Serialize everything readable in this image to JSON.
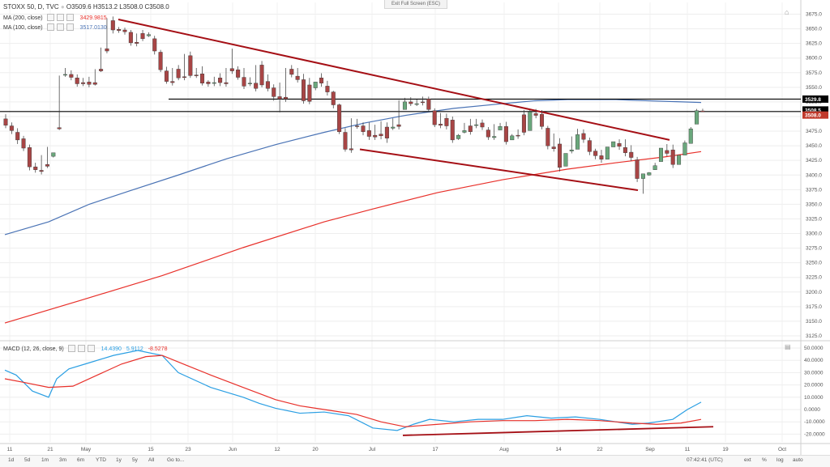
{
  "header": {
    "symbol_line": "STOXX 50, D, TVC",
    "ohlc": "O3509.6  H3513.2  L3508.0  C3508.0",
    "ma200_label": "MA (200, close)",
    "ma200_value": "3429.9815",
    "ma100_label": "MA (100, close)",
    "ma100_value": "3517.0130",
    "exit_fullscreen": "Exit Full Screen (ESC)",
    "macd_label": "MACD (12, 26, close, 9)",
    "macd_values": [
      "14.4390",
      "5.9112",
      "-8.5278"
    ]
  },
  "colors": {
    "bull": "#6aa77c",
    "bear": "#a84545",
    "ma100": "#4a73b5",
    "ma200": "#e8302a",
    "trend": "#a50f15",
    "macd": "#2b9fe3",
    "signal": "#e8302a",
    "level": "#000000"
  },
  "price_axis": {
    "ticks": [
      "3675.0",
      "3650.0",
      "3625.0",
      "3600.0",
      "3575.0",
      "3550.0",
      "3525.0",
      "3500.0",
      "3475.0",
      "3450.0",
      "3425.0",
      "3400.0",
      "3375.0",
      "3350.0",
      "3325.0",
      "3300.0",
      "3275.0",
      "3250.0",
      "3225.0",
      "3200.0",
      "3175.0",
      "3150.0",
      "3125.0"
    ],
    "badges": {
      "upper": "3529.8",
      "mid": "3508.5",
      "last": "3508.0"
    }
  },
  "macd_axis": {
    "ticks": [
      "50.0000",
      "40.0000",
      "30.0000",
      "20.0000",
      "10.0000",
      "0.0000",
      "-10.0000",
      "-20.0000"
    ]
  },
  "time_axis": {
    "labels": [
      "11",
      "21",
      "May",
      "15",
      "23",
      "Jun",
      "12",
      "20",
      "Jul",
      "17",
      "Aug",
      "14",
      "22",
      "Sep",
      "11",
      "19",
      "Oct"
    ]
  },
  "bottom_bar": {
    "timeframes": [
      "1d",
      "5d",
      "1m",
      "3m",
      "6m",
      "YTD",
      "1y",
      "5y",
      "All",
      "Go to..."
    ],
    "clock": "07:42:41 (UTC)",
    "toggles": [
      "ext",
      "%",
      "log",
      "auto"
    ]
  },
  "chart_data": {
    "type": "candlestick",
    "candles": [
      [
        3496,
        3504,
        3485,
        3480
      ],
      [
        3484,
        3490,
        3476,
        3470
      ],
      [
        3473,
        3480,
        3460,
        3453
      ],
      [
        3462,
        3467,
        3446,
        3441
      ],
      [
        3447,
        3452,
        3414,
        3408
      ],
      [
        3414,
        3421,
        3409,
        3404
      ],
      [
        3408,
        3434,
        3406,
        3401
      ],
      [
        3418,
        3448,
        3415,
        3412
      ],
      [
        3432,
        3438,
        3438,
        3430
      ],
      [
        3481,
        3570,
        3479,
        3477
      ],
      [
        3572,
        3583,
        3572,
        3568
      ],
      [
        3572,
        3579,
        3567,
        3562
      ],
      [
        3566,
        3572,
        3556,
        3551
      ],
      [
        3558,
        3566,
        3556,
        3552
      ],
      [
        3559,
        3568,
        3555,
        3550
      ],
      [
        3558,
        3581,
        3555,
        3553
      ],
      [
        3581,
        3618,
        3578,
        3576
      ],
      [
        3616,
        3668,
        3612,
        3608
      ],
      [
        3664,
        3671,
        3648,
        3642
      ],
      [
        3649,
        3653,
        3647,
        3643
      ],
      [
        3648,
        3652,
        3645,
        3640
      ],
      [
        3644,
        3648,
        3626,
        3621
      ],
      [
        3627,
        3642,
        3625,
        3620
      ],
      [
        3642,
        3648,
        3633,
        3629
      ],
      [
        3638,
        3644,
        3640,
        3636
      ],
      [
        3633,
        3638,
        3612,
        3606
      ],
      [
        3610,
        3614,
        3580,
        3576
      ],
      [
        3578,
        3585,
        3560,
        3556
      ],
      [
        3560,
        3583,
        3558,
        3553
      ],
      [
        3581,
        3588,
        3566,
        3562
      ],
      [
        3568,
        3607,
        3567,
        3562
      ],
      [
        3604,
        3611,
        3570,
        3566
      ],
      [
        3571,
        3583,
        3570,
        3566
      ],
      [
        3573,
        3586,
        3557,
        3553
      ],
      [
        3559,
        3562,
        3556,
        3551
      ],
      [
        3557,
        3568,
        3558,
        3552
      ],
      [
        3566,
        3574,
        3558,
        3552
      ],
      [
        3558,
        3583,
        3556,
        3551
      ],
      [
        3582,
        3616,
        3578,
        3573
      ],
      [
        3580,
        3586,
        3567,
        3563
      ],
      [
        3567,
        3583,
        3552,
        3547
      ],
      [
        3557,
        3567,
        3557,
        3552
      ],
      [
        3557,
        3588,
        3548,
        3543
      ],
      [
        3588,
        3595,
        3554,
        3550
      ],
      [
        3560,
        3572,
        3548,
        3543
      ],
      [
        3549,
        3555,
        3534,
        3527
      ],
      [
        3534,
        3558,
        3530,
        3507
      ],
      [
        3533,
        3583,
        3530,
        3525
      ],
      [
        3581,
        3588,
        3572,
        3567
      ],
      [
        3569,
        3583,
        3563,
        3558
      ],
      [
        3563,
        3573,
        3527,
        3522
      ],
      [
        3554,
        3566,
        3526,
        3521
      ],
      [
        3549,
        3556,
        3559,
        3545
      ],
      [
        3566,
        3574,
        3557,
        3551
      ],
      [
        3552,
        3561,
        3542,
        3536
      ],
      [
        3542,
        3544,
        3520,
        3514
      ],
      [
        3520,
        3522,
        3474,
        3470
      ],
      [
        3473,
        3480,
        3444,
        3440
      ],
      [
        3445,
        3497,
        3443,
        3438
      ],
      [
        3484,
        3496,
        3483,
        3479
      ],
      [
        3484,
        3490,
        3474,
        3468
      ],
      [
        3476,
        3490,
        3466,
        3460
      ],
      [
        3468,
        3486,
        3465,
        3460
      ],
      [
        3470,
        3492,
        3467,
        3461
      ],
      [
        3482,
        3490,
        3463,
        3455
      ],
      [
        3480,
        3497,
        3482,
        3477
      ],
      [
        3486,
        3528,
        3483,
        3478
      ],
      [
        3512,
        3532,
        3525,
        3520
      ],
      [
        3525,
        3533,
        3522,
        3518
      ],
      [
        3522,
        3529,
        3522,
        3518
      ],
      [
        3525,
        3534,
        3524,
        3519
      ],
      [
        3530,
        3534,
        3512,
        3508
      ],
      [
        3510,
        3514,
        3486,
        3482
      ],
      [
        3487,
        3506,
        3485,
        3480
      ],
      [
        3497,
        3505,
        3484,
        3478
      ],
      [
        3494,
        3500,
        3460,
        3455
      ],
      [
        3462,
        3470,
        3468,
        3460
      ],
      [
        3473,
        3489,
        3476,
        3471
      ],
      [
        3484,
        3496,
        3474,
        3469
      ],
      [
        3485,
        3496,
        3486,
        3480
      ],
      [
        3489,
        3495,
        3482,
        3477
      ],
      [
        3477,
        3482,
        3465,
        3460
      ],
      [
        3464,
        3487,
        3466,
        3460
      ],
      [
        3477,
        3489,
        3483,
        3478
      ],
      [
        3483,
        3491,
        3457,
        3452
      ],
      [
        3460,
        3470,
        3467,
        3462
      ],
      [
        3468,
        3478,
        3467,
        3462
      ],
      [
        3503,
        3511,
        3473,
        3468
      ],
      [
        3476,
        3511,
        3508,
        3502
      ],
      [
        3505,
        3513,
        3502,
        3497
      ],
      [
        3504,
        3511,
        3483,
        3478
      ],
      [
        3480,
        3484,
        3450,
        3444
      ],
      [
        3448,
        3471,
        3445,
        3440
      ],
      [
        3453,
        3463,
        3413,
        3406
      ],
      [
        3415,
        3422,
        3437,
        3431
      ],
      [
        3441,
        3466,
        3443,
        3437
      ],
      [
        3444,
        3479,
        3469,
        3463
      ],
      [
        3471,
        3478,
        3461,
        3455
      ],
      [
        3459,
        3464,
        3440,
        3434
      ],
      [
        3441,
        3445,
        3433,
        3427
      ],
      [
        3433,
        3443,
        3427,
        3421
      ],
      [
        3427,
        3437,
        3448,
        3443
      ],
      [
        3448,
        3455,
        3457,
        3452
      ],
      [
        3454,
        3461,
        3449,
        3443
      ],
      [
        3447,
        3461,
        3438,
        3432
      ],
      [
        3439,
        3451,
        3430,
        3424
      ],
      [
        3426,
        3431,
        3394,
        3388
      ],
      [
        3394,
        3396,
        3402,
        3368
      ],
      [
        3400,
        3405,
        3404,
        3399
      ],
      [
        3409,
        3421,
        3416,
        3410
      ],
      [
        3423,
        3441,
        3446,
        3441
      ],
      [
        3442,
        3453,
        3437,
        3432
      ],
      [
        3443,
        3452,
        3418,
        3412
      ],
      [
        3418,
        3421,
        3434,
        3428
      ],
      [
        3434,
        3459,
        3455,
        3449
      ],
      [
        3454,
        3482,
        3479,
        3474
      ],
      [
        3487,
        3513,
        3510,
        3502
      ],
      [
        3509.6,
        3513.2,
        3508,
        3508
      ]
    ]
  }
}
